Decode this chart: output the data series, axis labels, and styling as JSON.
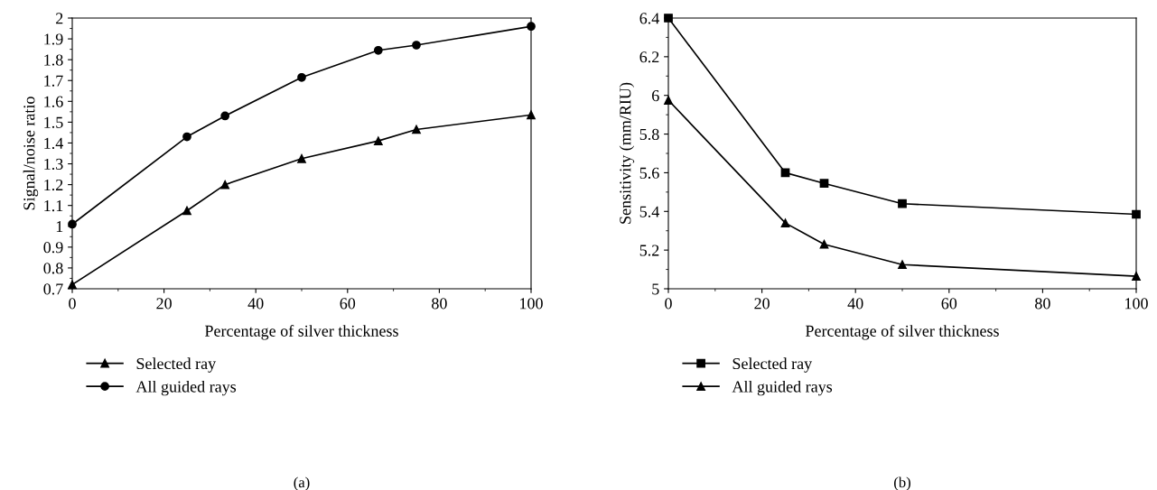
{
  "chart_data": [
    {
      "type": "line",
      "xlabel": "Percentage of silver thickness",
      "ylabel": "Signal/noise ratio",
      "x": [
        0,
        25,
        33.3,
        50,
        66.7,
        75,
        100
      ],
      "xlim": [
        0,
        100
      ],
      "xticks": [
        0,
        20,
        40,
        60,
        80,
        100
      ],
      "ylim": [
        0.7,
        2
      ],
      "yticks": [
        0.7,
        0.8,
        0.9,
        1,
        1.1,
        1.2,
        1.3,
        1.4,
        1.5,
        1.6,
        1.7,
        1.8,
        1.9,
        2
      ],
      "legend": "bottom left",
      "annotations": [
        "(a)"
      ],
      "series": [
        {
          "name": "Selected ray",
          "color": "#000000",
          "marker": "triangle",
          "values": [
            0.72,
            1.075,
            1.2,
            1.325,
            1.41,
            1.465,
            1.535
          ]
        },
        {
          "name": "All guided rays",
          "color": "#000000",
          "marker": "circle",
          "values": [
            1.01,
            1.43,
            1.53,
            1.715,
            1.845,
            1.87,
            1.96
          ]
        }
      ]
    },
    {
      "type": "line",
      "xlabel": "Percentage of silver thickness",
      "ylabel": "Sensitivity (mm/RIU)",
      "x": [
        0,
        25,
        33.3,
        50,
        100
      ],
      "xlim": [
        0,
        100
      ],
      "xticks": [
        0,
        20,
        40,
        60,
        80,
        100
      ],
      "ylim": [
        5,
        6.4
      ],
      "yticks": [
        5,
        {
          "value": 5.2,
          "label": "5.2"
        },
        {
          "value": 5.4,
          "label": "5.4"
        },
        {
          "value": 5.6,
          "label": "5.6"
        },
        {
          "value": 5.8,
          "label": "5.8"
        },
        6,
        {
          "value": 6.2,
          "label": "6.2"
        },
        {
          "value": 6.4,
          "label": "6.4"
        }
      ],
      "legend": "bottom left",
      "annotations": [
        "(b)"
      ],
      "series": [
        {
          "name": "Selected ray",
          "color": "#000000",
          "marker": "square",
          "values": [
            6.4,
            5.6,
            5.545,
            5.44,
            5.385
          ]
        },
        {
          "name": "All guided rays",
          "color": "#000000",
          "marker": "triangle",
          "values": [
            5.975,
            5.34,
            5.23,
            5.125,
            5.065
          ]
        }
      ]
    }
  ]
}
